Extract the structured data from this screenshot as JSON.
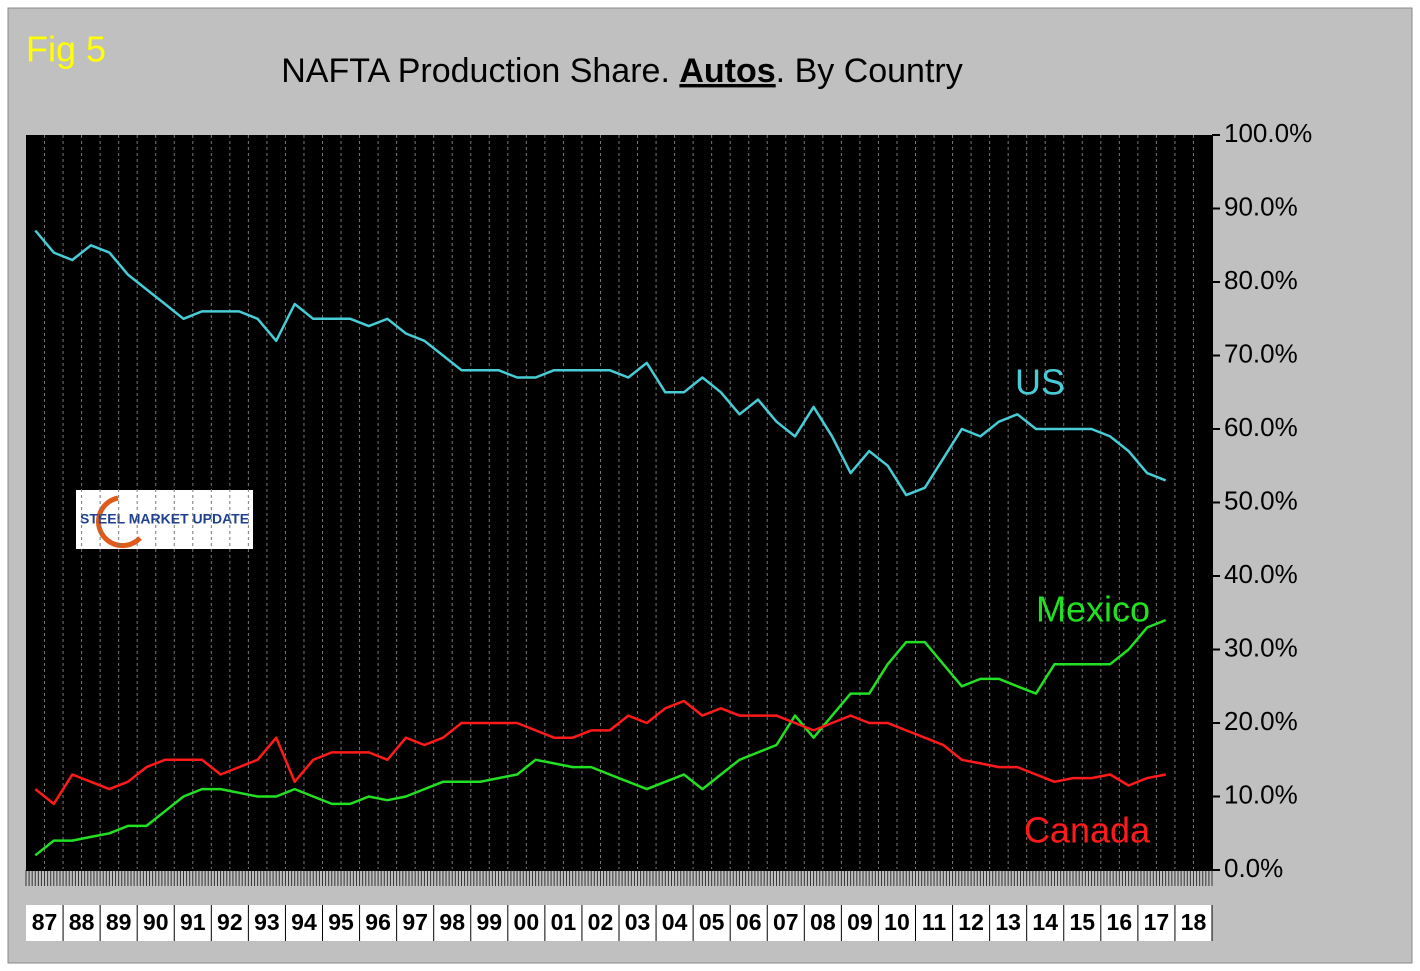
{
  "chart_data": {
    "type": "line",
    "annotation": "Fig 5",
    "title": [
      "NAFTA Production Share. ",
      "Autos",
      ". By Country"
    ],
    "logo": "STEEL MARKET UPDATE",
    "categories": [
      "87",
      null,
      "88",
      null,
      "89",
      null,
      "90",
      null,
      "91",
      null,
      "92",
      null,
      "93",
      null,
      "94",
      null,
      "95",
      null,
      "96",
      null,
      "97",
      null,
      "98",
      null,
      "99",
      null,
      "00",
      null,
      "01",
      null,
      "02",
      null,
      "03",
      null,
      "04",
      null,
      "05",
      null,
      "06",
      null,
      "07",
      null,
      "08",
      null,
      "09",
      null,
      "10",
      null,
      "11",
      null,
      "12",
      null,
      "13",
      null,
      "14",
      null,
      "15",
      null,
      "16",
      null,
      "17",
      null,
      "18",
      null
    ],
    "series": [
      {
        "name": "US",
        "color": "#48ccd6",
        "values": [
          87,
          84,
          83,
          85,
          84,
          81,
          79,
          77,
          75,
          76,
          76,
          76,
          75,
          72,
          77,
          75,
          75,
          75,
          74,
          75,
          73,
          72,
          70,
          68,
          68,
          68,
          67,
          67,
          68,
          68,
          68,
          68,
          67,
          69,
          65,
          65,
          67,
          65,
          62,
          64,
          61,
          59,
          63,
          59,
          54,
          57,
          55,
          51,
          52,
          56,
          60,
          59,
          61,
          62,
          60,
          60,
          60,
          60,
          59,
          57,
          54,
          53,
          null,
          null
        ]
      },
      {
        "name": "Mexico",
        "color": "#22e022",
        "values": [
          2,
          4,
          4,
          4.5,
          5,
          6,
          6,
          8,
          10,
          11,
          11,
          10.5,
          10,
          10,
          11,
          10,
          9,
          9,
          10,
          9.5,
          10,
          11,
          12,
          12,
          12,
          12.5,
          13,
          15,
          14.5,
          14,
          14,
          13,
          12,
          11,
          12,
          13,
          11,
          13,
          15,
          16,
          17,
          21,
          18,
          21,
          24,
          24,
          28,
          31,
          31,
          28,
          25,
          26,
          26,
          25,
          24,
          28,
          28,
          28,
          28,
          30,
          33,
          34,
          null,
          null
        ]
      },
      {
        "name": "Canada",
        "color": "#ff1a1a",
        "values": [
          11,
          9,
          13,
          12,
          11,
          12,
          14,
          15,
          15,
          15,
          13,
          14,
          15,
          18,
          12,
          15,
          16,
          16,
          16,
          15,
          18,
          17,
          18,
          20,
          20,
          20,
          20,
          19,
          18,
          18,
          19,
          19,
          21,
          20,
          22,
          23,
          21,
          22,
          21,
          21,
          21,
          20,
          19,
          20,
          21,
          20,
          20,
          19,
          18,
          17,
          15,
          14.5,
          14,
          14,
          13,
          12,
          12.5,
          12.5,
          13,
          11.5,
          12.5,
          13,
          null,
          null
        ]
      }
    ],
    "ylim": [
      0,
      100
    ],
    "yticks": [
      {
        "value": 0,
        "label": "0.0%"
      },
      {
        "value": 10,
        "label": "10.0%"
      },
      {
        "value": 20,
        "label": "20.0%"
      },
      {
        "value": 30,
        "label": "30.0%"
      },
      {
        "value": 40,
        "label": "40.0%"
      },
      {
        "value": 50,
        "label": "50.0%"
      },
      {
        "value": 60,
        "label": "60.0%"
      },
      {
        "value": 70,
        "label": "70.0%"
      },
      {
        "value": 80,
        "label": "80.0%"
      },
      {
        "value": 90,
        "label": "90.0%"
      },
      {
        "value": 100,
        "label": "100.0%"
      }
    ],
    "grid": true
  }
}
